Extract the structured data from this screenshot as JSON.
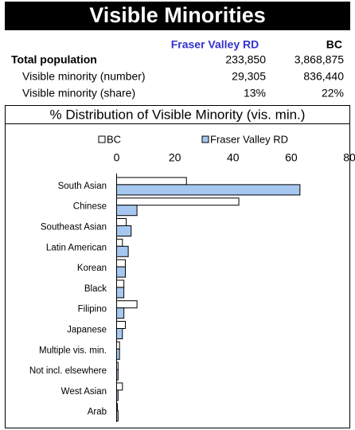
{
  "title": "Visible Minorities",
  "table": {
    "columns": [
      "Fraser Valley RD",
      "BC"
    ],
    "rows": [
      [
        "Total population",
        "233,850",
        "3,868,875"
      ],
      [
        "Visible minority (number)",
        "29,305",
        "836,440"
      ],
      [
        "Visible minority (share)",
        "13%",
        "22%"
      ]
    ]
  },
  "chart_data": {
    "type": "hbar",
    "title": "% Distribution of Visible Minority (vis. min.)",
    "categories": [
      "South Asian",
      "Chinese",
      "Southeast Asian",
      "Latin American",
      "Korean",
      "Black",
      "Filipino",
      "Japanese",
      "Multiple vis. min.",
      "Not incl. elsewhere",
      "West Asian",
      "Arab"
    ],
    "series": [
      {
        "name": "BC",
        "color": "#ffffff",
        "values": [
          24,
          42,
          3.3,
          2,
          3,
          2.5,
          7,
          3,
          1,
          0.5,
          2,
          0.3
        ]
      },
      {
        "name": "Fraser Valley RD",
        "color": "#a6c8f0",
        "values": [
          63,
          7,
          5,
          4,
          3,
          2.5,
          2.5,
          2,
          1,
          0.5,
          0.5,
          0.5
        ]
      }
    ],
    "xlim": [
      0,
      80
    ],
    "xticks": [
      0,
      20,
      40,
      60,
      80
    ],
    "grid": false,
    "legend": "top"
  }
}
